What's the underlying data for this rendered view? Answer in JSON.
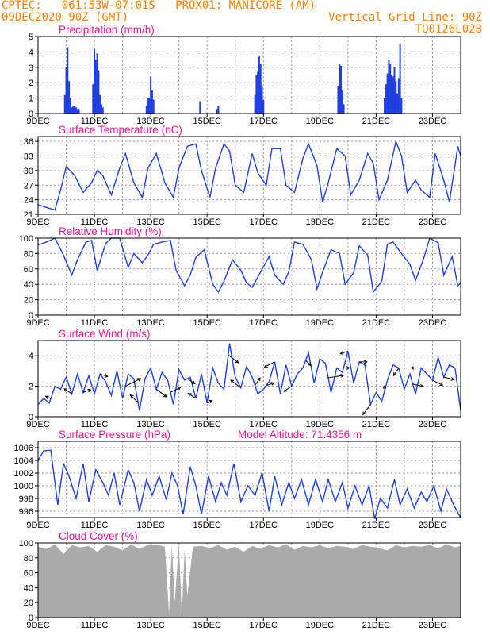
{
  "header": {
    "line1_left": "CPTEC:   061:53W-07:01S   PROX01: MANICORE (AM)",
    "line2_left": "09DEC2020 90Z (GMT)",
    "line2_right": "Vertical Grid Line: 90Z",
    "line3_right": "TQ0126L028"
  },
  "colors": {
    "header": "#ff7f00",
    "title": "#ff1493",
    "series": "#1f3fdf",
    "grid": "#999999",
    "cloud": "#aaaaaa",
    "arrow": "#000000"
  },
  "chart_data": [
    {
      "id": "precip",
      "type": "bar",
      "title": "Precipitation (mm/h)",
      "ylim": [
        0,
        5
      ],
      "yticks": [
        "0",
        "1",
        "2",
        "3",
        "4",
        "5"
      ],
      "xticks": [
        "9DEC",
        "11DEC",
        "13DEC",
        "15DEC",
        "17DEC",
        "19DEC",
        "21DEC",
        "23DEC"
      ],
      "x_start_day": 9,
      "x_end_day": 24.0,
      "series": [
        {
          "day": [
            9.95,
            10.0,
            10.05,
            10.1,
            10.15,
            10.2,
            10.25,
            10.3,
            10.35,
            10.4,
            10.45,
            10.95,
            11.0,
            11.05,
            11.1,
            11.15,
            11.2,
            11.25,
            11.3,
            12.85,
            12.9,
            12.95,
            13.0,
            13.05,
            13.1,
            14.75,
            15.35,
            15.4,
            16.7,
            16.75,
            16.8,
            16.85,
            16.9,
            16.95,
            17.0,
            19.65,
            19.7,
            19.75,
            19.8,
            19.85,
            21.3,
            21.35,
            21.4,
            21.45,
            21.5,
            21.55,
            21.6,
            21.65,
            21.7,
            21.75,
            21.8,
            21.85,
            21.9
          ],
          "value": [
            1.2,
            3.0,
            4.3,
            2.1,
            1.0,
            0.4,
            0.5,
            0.5,
            0.4,
            0.3,
            0.3,
            1.9,
            4.2,
            3.5,
            3.9,
            2.8,
            1.2,
            0.6,
            0.4,
            0.5,
            1.0,
            1.0,
            2.4,
            1.5,
            0.9,
            0.8,
            0.3,
            0.5,
            1.2,
            2.5,
            2.7,
            3.7,
            3.2,
            1.8,
            0.9,
            1.8,
            3.2,
            3.1,
            1.5,
            0.6,
            1.0,
            1.9,
            2.6,
            3.5,
            3.2,
            2.5,
            2.4,
            3.0,
            2.1,
            1.3,
            2.3,
            4.5,
            1.0
          ]
        }
      ]
    },
    {
      "id": "temp",
      "type": "line",
      "title": "Surface Temperature (nC)",
      "ylim": [
        21,
        37
      ],
      "yticks": [
        "21",
        "24",
        "27",
        "30",
        "33",
        "36"
      ],
      "xticks": [
        "9DEC",
        "11DEC",
        "13DEC",
        "15DEC",
        "17DEC",
        "19DEC",
        "21DEC",
        "23DEC"
      ],
      "x_start_day": 9,
      "x_end_day": 24.0,
      "x": [
        9.0,
        9.3,
        9.6,
        9.8,
        10.0,
        10.3,
        10.6,
        10.9,
        11.1,
        11.3,
        11.6,
        11.9,
        12.1,
        12.4,
        12.7,
        12.9,
        13.2,
        13.5,
        13.8,
        14.0,
        14.3,
        14.6,
        14.8,
        15.1,
        15.3,
        15.6,
        15.8,
        16.0,
        16.3,
        16.6,
        16.8,
        17.1,
        17.3,
        17.6,
        17.8,
        18.1,
        18.4,
        18.6,
        18.9,
        19.1,
        19.3,
        19.6,
        19.9,
        20.1,
        20.4,
        20.7,
        20.9,
        21.1,
        21.4,
        21.7,
        21.9,
        22.1,
        22.4,
        22.6,
        22.9,
        23.1,
        23.4,
        23.6,
        23.9,
        24.0
      ],
      "y": [
        23.0,
        22.4,
        21.9,
        26.0,
        30.8,
        29.0,
        25.5,
        27.5,
        30.0,
        29.0,
        25.0,
        30.5,
        33.5,
        27.5,
        24.5,
        30.5,
        33.5,
        27.5,
        24.5,
        30.5,
        35.0,
        35.5,
        30.0,
        24.5,
        30.5,
        35.5,
        34.0,
        27.0,
        25.5,
        33.5,
        29.5,
        27.0,
        34.5,
        34.5,
        27.0,
        25.5,
        32.5,
        35.5,
        31.0,
        23.5,
        27.5,
        34.5,
        33.0,
        25.0,
        28.0,
        33.5,
        31.5,
        24.0,
        28.0,
        36.0,
        33.0,
        25.5,
        28.0,
        26.0,
        24.5,
        33.5,
        28.0,
        23.5,
        35.0,
        33.0
      ]
    },
    {
      "id": "rh",
      "type": "line",
      "title": "Relative Humidity (%)",
      "ylim": [
        0,
        100
      ],
      "yticks": [
        "0",
        "20",
        "40",
        "60",
        "80",
        "100"
      ],
      "xticks": [
        "9DEC",
        "11DEC",
        "13DEC",
        "15DEC",
        "17DEC",
        "19DEC",
        "21DEC",
        "23DEC"
      ],
      "x_start_day": 9,
      "x_end_day": 24.0,
      "x": [
        9.0,
        9.3,
        9.6,
        9.9,
        10.2,
        10.4,
        10.7,
        10.9,
        11.1,
        11.4,
        11.6,
        11.9,
        12.2,
        12.4,
        12.7,
        12.9,
        13.1,
        13.4,
        13.7,
        13.9,
        14.2,
        14.4,
        14.6,
        14.9,
        15.2,
        15.4,
        15.6,
        15.9,
        16.2,
        16.4,
        16.6,
        16.9,
        17.2,
        17.4,
        17.7,
        17.9,
        18.1,
        18.4,
        18.7,
        18.9,
        19.1,
        19.4,
        19.7,
        19.9,
        20.2,
        20.4,
        20.7,
        20.9,
        21.2,
        21.4,
        21.6,
        21.9,
        22.2,
        22.4,
        22.7,
        22.9,
        23.2,
        23.4,
        23.7,
        23.9,
        24.0
      ],
      "y": [
        91,
        95,
        100,
        78,
        52,
        72,
        95,
        97,
        58,
        93,
        100,
        100,
        62,
        80,
        68,
        78,
        92,
        95,
        97,
        58,
        38,
        52,
        75,
        85,
        40,
        30,
        44,
        72,
        58,
        42,
        36,
        56,
        76,
        52,
        40,
        56,
        95,
        92,
        72,
        34,
        56,
        85,
        80,
        40,
        55,
        90,
        78,
        30,
        44,
        92,
        95,
        80,
        66,
        45,
        75,
        100,
        94,
        52,
        76,
        38,
        42
      ]
    },
    {
      "id": "wind",
      "type": "line",
      "title": "Surface Wind (m/s)",
      "ylim": [
        0,
        5
      ],
      "yticks": [
        "0",
        "2",
        "4"
      ],
      "xticks": [
        "9DEC",
        "11DEC",
        "13DEC",
        "15DEC",
        "17DEC",
        "19DEC",
        "21DEC",
        "23DEC"
      ],
      "x_start_day": 9,
      "x_end_day": 24.0,
      "x": [
        9.0,
        9.2,
        9.4,
        9.6,
        9.8,
        10.0,
        10.2,
        10.4,
        10.6,
        10.8,
        11.0,
        11.2,
        11.4,
        11.6,
        11.8,
        12.0,
        12.2,
        12.4,
        12.6,
        12.8,
        13.0,
        13.2,
        13.4,
        13.6,
        13.8,
        14.0,
        14.2,
        14.4,
        14.6,
        14.8,
        15.0,
        15.2,
        15.4,
        15.6,
        15.8,
        16.0,
        16.2,
        16.4,
        16.6,
        16.8,
        17.0,
        17.2,
        17.4,
        17.6,
        17.8,
        18.0,
        18.2,
        18.4,
        18.6,
        18.8,
        19.0,
        19.2,
        19.4,
        19.6,
        19.8,
        20.0,
        20.2,
        20.4,
        20.6,
        20.8,
        21.0,
        21.2,
        21.4,
        21.6,
        21.8,
        22.0,
        22.2,
        22.4,
        22.6,
        22.8,
        23.0,
        23.2,
        23.4,
        23.6,
        23.8,
        24.0
      ],
      "y": [
        0.8,
        1.2,
        0.9,
        2.0,
        1.8,
        2.6,
        1.5,
        2.8,
        1.6,
        2.7,
        1.5,
        2.8,
        2.3,
        1.4,
        3.0,
        1.2,
        2.8,
        2.5,
        0.4,
        2.5,
        3.2,
        1.8,
        2.9,
        2.4,
        0.8,
        3.1,
        2.4,
        2.6,
        1.2,
        2.8,
        0.9,
        3.2,
        2.2,
        1.8,
        4.8,
        2.6,
        1.9,
        3.3,
        2.6,
        1.5,
        1.8,
        2.3,
        3.6,
        1.5,
        3.4,
        2.0,
        2.8,
        3.2,
        4.2,
        2.2,
        3.8,
        3.5,
        1.6,
        3.2,
        2.9,
        4.3,
        2.2,
        3.6,
        3.4,
        0.8,
        1.6,
        1.0,
        2.4,
        3.4,
        3.2,
        1.8,
        2.8,
        1.5,
        3.2,
        2.8,
        2.4,
        3.9,
        2.6,
        3.4,
        3.2,
        0.4
      ],
      "arrows": {
        "day": [
          9.45,
          10.2,
          10.6,
          11.2,
          12.1,
          12.55,
          13.2,
          13.7,
          14.3,
          14.6,
          15.0,
          15.75,
          16.2,
          16.7,
          17.1,
          17.4,
          18.0,
          18.5,
          19.3,
          19.6,
          20.0,
          20.4,
          20.8,
          21.3,
          21.8,
          22.3,
          22.6,
          23.0,
          23.4
        ],
        "dx": [
          -2,
          -3,
          3,
          3,
          6,
          -3,
          4,
          4,
          3,
          -3,
          2,
          4,
          -4,
          2,
          3,
          -4,
          -3,
          2,
          6,
          5,
          -3,
          3,
          -3,
          0,
          -2,
          4,
          -4,
          4,
          4
        ],
        "dy": [
          1,
          2,
          1,
          -1,
          3,
          3,
          -3,
          2,
          -2,
          2,
          1,
          -3,
          3,
          3,
          1,
          -2,
          -2,
          -2,
          1,
          0,
          -1,
          0,
          -4,
          2,
          -3,
          -1,
          0,
          -2,
          -1
        ]
      }
    },
    {
      "id": "pres",
      "type": "line",
      "title": "Surface Pressure (hPa)",
      "annotation": "Model Altitude: 71.4356 m",
      "ylim": [
        995,
        1007
      ],
      "yticks": [
        "996",
        "998",
        "1000",
        "1002",
        "1004",
        "1006"
      ],
      "xticks": [
        "9DEC",
        "11DEC",
        "13DEC",
        "15DEC",
        "17DEC",
        "19DEC",
        "21DEC",
        "23DEC"
      ],
      "x_start_day": 9,
      "x_end_day": 24.0,
      "x": [
        9.0,
        9.2,
        9.45,
        9.7,
        9.9,
        10.1,
        10.35,
        10.6,
        10.8,
        11.05,
        11.3,
        11.5,
        11.7,
        11.9,
        12.2,
        12.4,
        12.6,
        12.85,
        13.05,
        13.3,
        13.55,
        13.75,
        13.95,
        14.15,
        14.4,
        14.6,
        14.8,
        15.05,
        15.3,
        15.5,
        15.7,
        15.95,
        16.2,
        16.45,
        16.7,
        16.95,
        17.2,
        17.4,
        17.65,
        17.9,
        18.1,
        18.35,
        18.6,
        18.85,
        19.1,
        19.3,
        19.55,
        19.8,
        20.0,
        20.25,
        20.5,
        20.75,
        20.95,
        21.15,
        21.4,
        21.65,
        21.85,
        22.1,
        22.35,
        22.6,
        22.8,
        23.05,
        23.3,
        23.5,
        23.75,
        24.0
      ],
      "y": [
        1004.0,
        1005.5,
        1005.6,
        997.0,
        1003.5,
        1001.5,
        998.0,
        1003.5,
        997.5,
        1002.5,
        1000.5,
        998.5,
        1002.0,
        997.0,
        1002.5,
        1000.5,
        996.0,
        1001.0,
        998.5,
        1001.5,
        997.8,
        1002.0,
        1000.0,
        995.5,
        1003.0,
        1000.0,
        995.5,
        1001.5,
        997.5,
        1000.5,
        998.5,
        1003.5,
        997.5,
        1000.0,
        998.5,
        1002.0,
        996.0,
        1001.5,
        997.0,
        1000.5,
        998.0,
        1001.0,
        997.0,
        1001.0,
        997.5,
        1001.0,
        997.5,
        1000.5,
        996.5,
        1000.0,
        997.0,
        1000.0,
        994.8,
        998.0,
        996.5,
        1001.0,
        997.0,
        999.5,
        996.5,
        999.0,
        997.5,
        1000.0,
        996.0,
        999.5,
        997.0,
        995.0
      ]
    },
    {
      "id": "cloud",
      "type": "area",
      "title": "Cloud Cover (%)",
      "ylim": [
        0,
        100
      ],
      "yticks": [
        "0",
        "20",
        "40",
        "60",
        "80",
        "100"
      ],
      "xticks": [
        "9DEC",
        "11DEC",
        "13DEC",
        "15DEC",
        "17DEC",
        "19DEC",
        "21DEC",
        "23DEC"
      ],
      "x_start_day": 9,
      "x_end_day": 24.0,
      "x": [
        9.0,
        9.3,
        9.6,
        9.9,
        10.2,
        10.5,
        10.8,
        11.1,
        11.4,
        11.7,
        12.0,
        12.3,
        12.6,
        12.9,
        13.2,
        13.5,
        13.65,
        13.75,
        13.85,
        14.0,
        14.1,
        14.2,
        14.3,
        14.5,
        14.8,
        15.1,
        15.4,
        15.7,
        16.0,
        16.3,
        16.6,
        16.9,
        17.2,
        17.5,
        17.8,
        18.1,
        18.4,
        18.7,
        19.0,
        19.3,
        19.6,
        19.9,
        20.2,
        20.5,
        20.8,
        21.1,
        21.4,
        21.7,
        22.0,
        22.3,
        22.6,
        22.9,
        23.2,
        23.5,
        23.8,
        24.0
      ],
      "y": [
        95,
        92,
        98,
        85,
        97,
        94,
        96,
        88,
        97,
        95,
        90,
        98,
        92,
        97,
        98,
        95,
        5,
        97,
        20,
        98,
        3,
        90,
        30,
        95,
        96,
        93,
        97,
        91,
        95,
        88,
        96,
        92,
        97,
        94,
        98,
        91,
        96,
        94,
        97,
        93,
        96,
        95,
        92,
        97,
        95,
        93,
        90,
        97,
        94,
        96,
        95,
        97,
        93,
        98,
        94,
        96
      ]
    }
  ]
}
